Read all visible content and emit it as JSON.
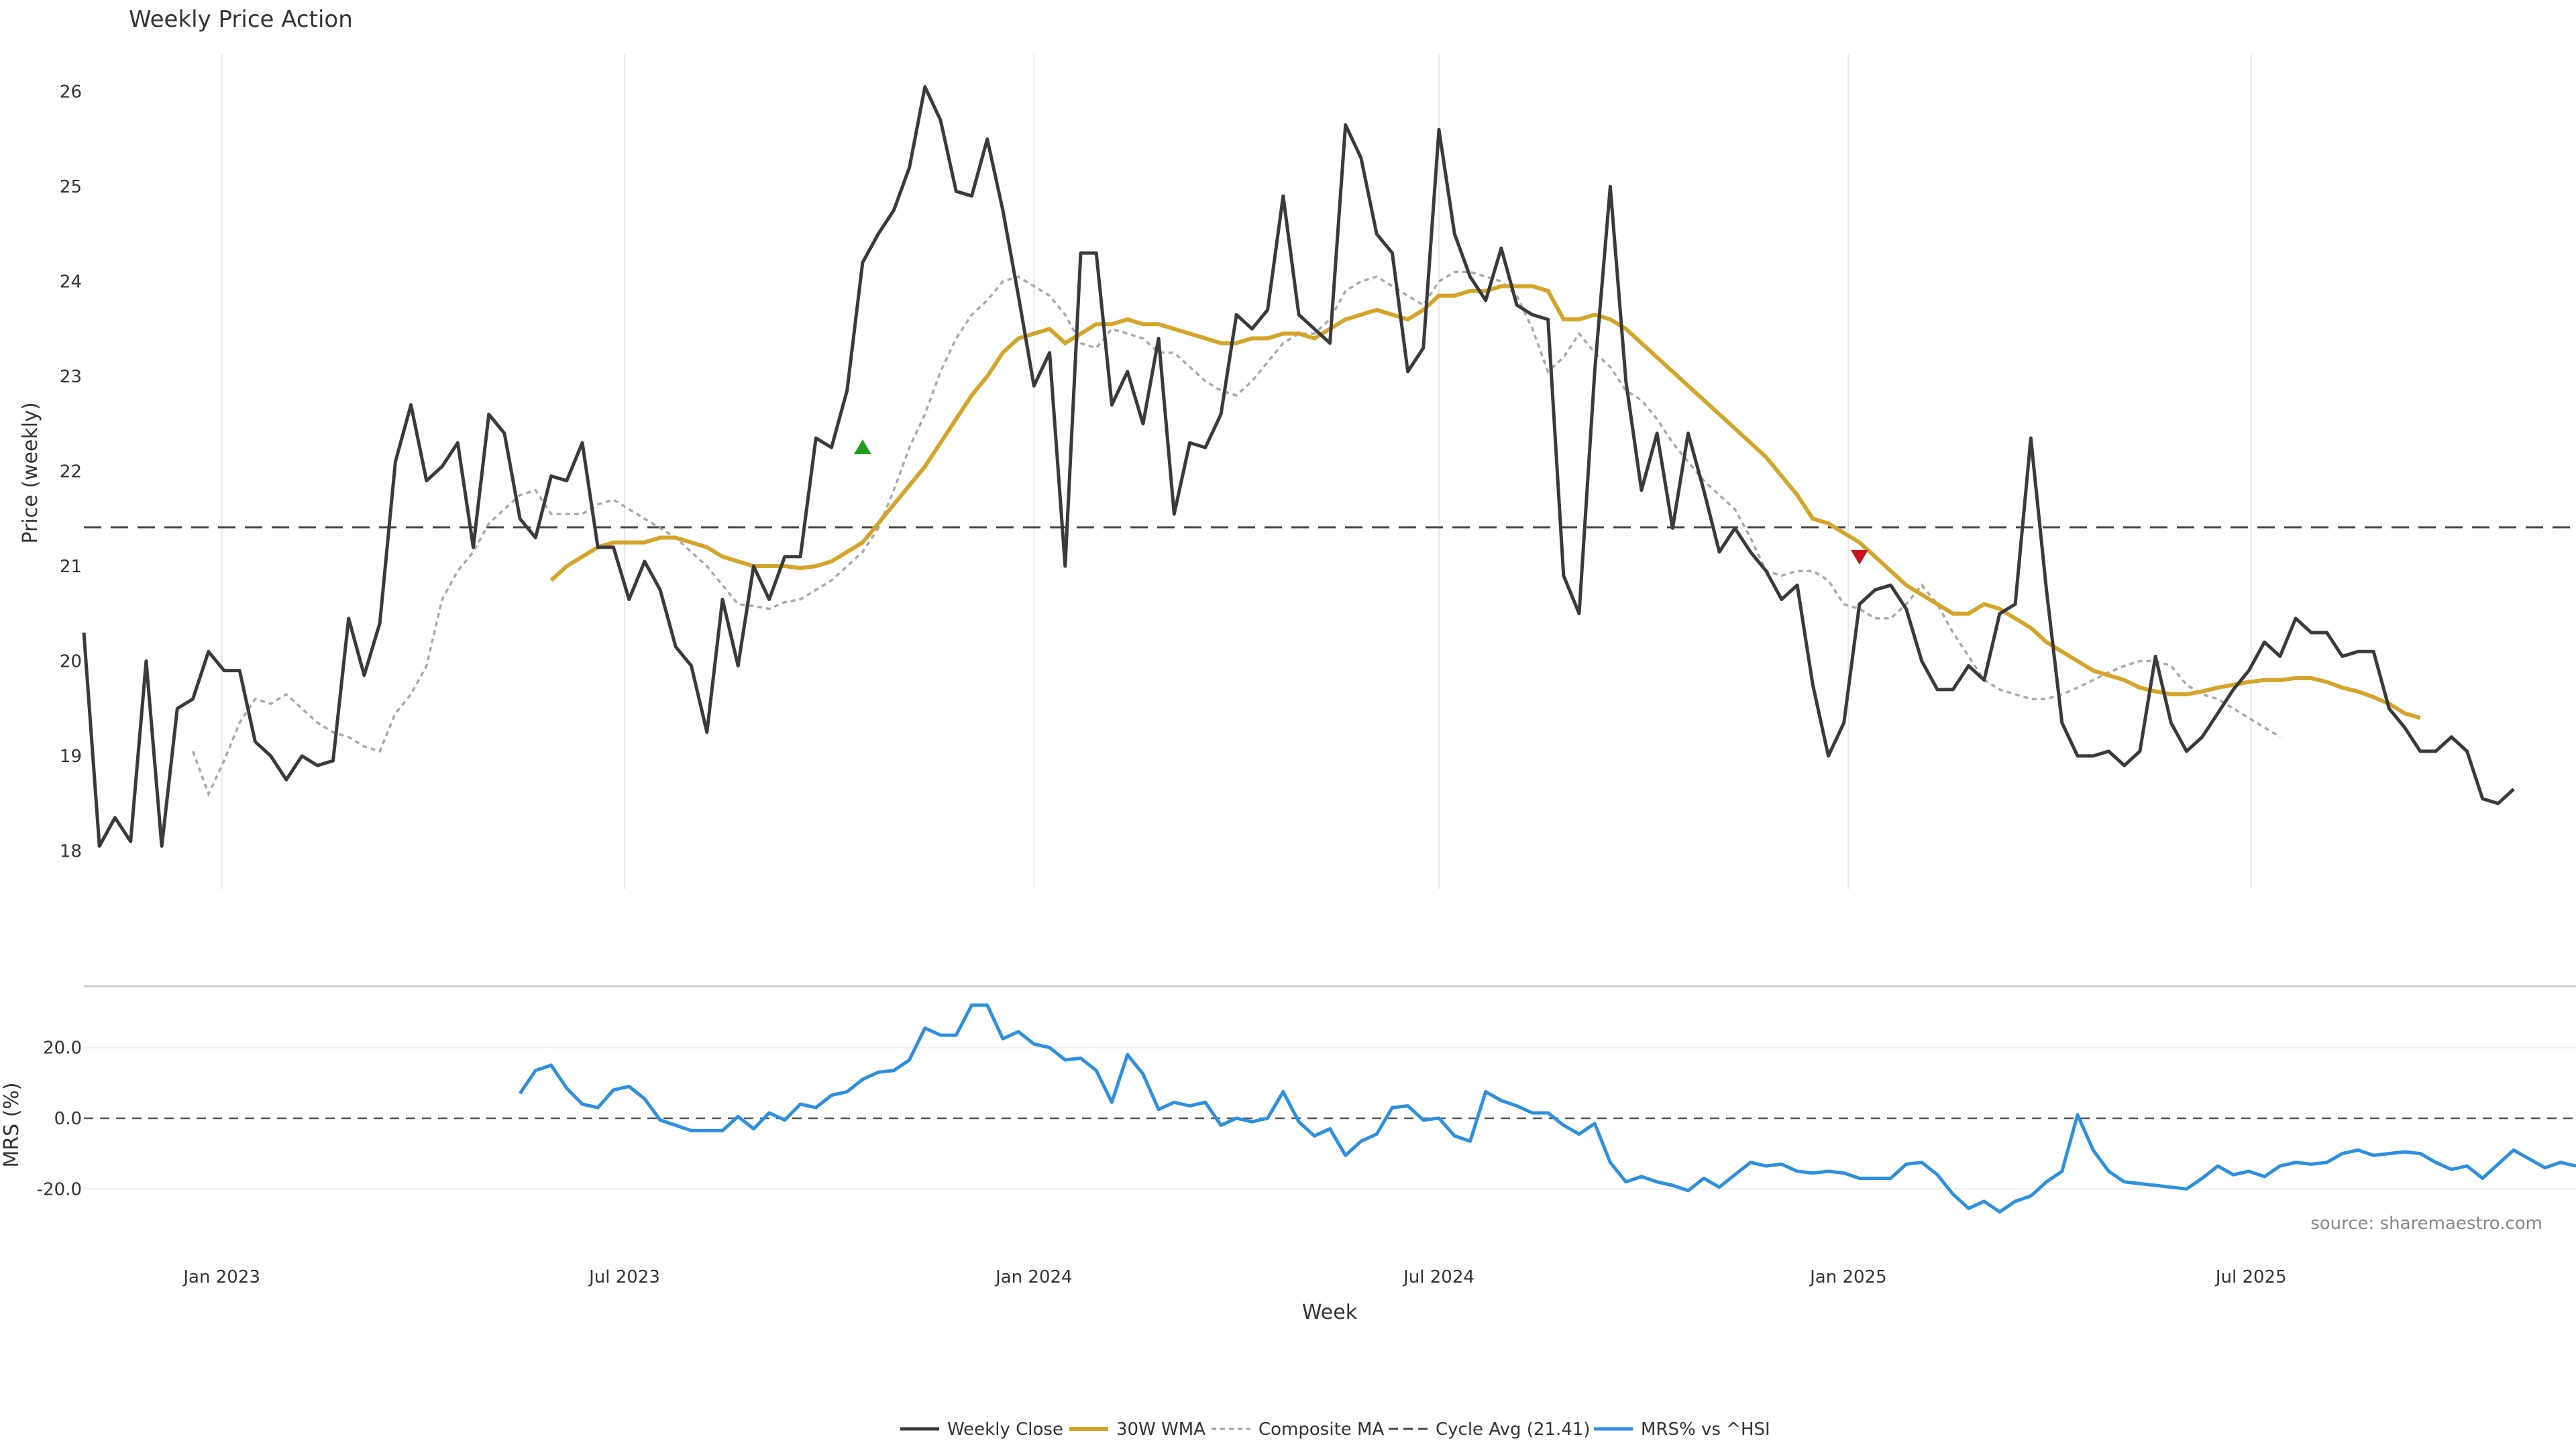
{
  "colors": {
    "close": "#3a3a3a",
    "wma": "#d4a52a",
    "composite": "#a9a9a9",
    "cycle": "#444444",
    "mrs": "#2d8fe0",
    "grid": "#e8e8e8",
    "buy": "#1f9e1f",
    "sell": "#c8141e"
  },
  "chart_data": {
    "type": "line",
    "title": "Weekly Price Action",
    "source": "source: sharemaestro.com",
    "xlabel": "Week",
    "x_ticks": [
      "Jan 2023",
      "Jul 2023",
      "Jan 2024",
      "Jul 2024",
      "Jan 2025",
      "Jul 2025"
    ],
    "x_range": [
      "2022-10-31",
      "2025-11-24"
    ],
    "price_panel": {
      "ylabel": "Price (weekly)",
      "ylim": [
        17.6,
        26.4
      ],
      "y_ticks": [
        "18",
        "19",
        "20",
        "21",
        "22",
        "23",
        "24",
        "25",
        "26"
      ],
      "cycle_avg": 21.41,
      "buy_signal": {
        "x": "2023-10-16",
        "y": 22.25
      },
      "sell_signal": {
        "x": "2025-01-06",
        "y": 21.1
      }
    },
    "mrs_panel": {
      "ylabel": "MRS (%)",
      "ylim": [
        -30,
        37
      ],
      "y_ticks": [
        "20.0",
        "0.0",
        "-20.0"
      ],
      "zero_line": 0
    },
    "legend": [
      "Weekly Close",
      "30W WMA",
      "Composite MA",
      "Cycle Avg (21.41)",
      "MRS% vs ^HSI"
    ],
    "legend_position": "bottom-center",
    "series": [
      {
        "name": "Weekly Close",
        "start": "2022-10-31",
        "step_weeks": 1,
        "values": [
          20.3,
          18.05,
          18.35,
          18.1,
          20.0,
          18.05,
          19.5,
          19.6,
          20.1,
          19.9,
          19.9,
          19.15,
          19.0,
          18.75,
          19.0,
          18.9,
          18.95,
          20.45,
          19.85,
          20.4,
          22.1,
          22.7,
          21.9,
          22.05,
          22.3,
          21.2,
          22.6,
          22.4,
          21.5,
          21.3,
          21.95,
          21.9,
          22.3,
          21.2,
          21.2,
          20.65,
          21.05,
          20.75,
          20.15,
          19.95,
          19.25,
          20.65,
          19.95,
          21.0,
          20.65,
          21.1,
          21.1,
          22.35,
          22.25,
          22.85,
          24.2,
          24.5,
          24.75,
          25.2,
          26.05,
          25.7,
          24.95,
          24.9,
          25.5,
          24.75,
          23.85,
          22.9,
          23.25,
          21.0,
          24.3,
          24.3,
          22.7,
          23.05,
          22.5,
          23.4,
          21.55,
          22.3,
          22.25,
          22.6,
          23.65,
          23.5,
          23.7,
          24.9,
          23.65,
          23.5,
          23.35,
          25.65,
          25.3,
          24.5,
          24.3,
          23.05,
          23.3,
          25.6,
          24.5,
          24.05,
          23.8,
          24.35,
          23.75,
          23.65,
          23.6,
          20.9,
          20.5,
          23.05,
          25.0,
          22.95,
          21.8,
          22.4,
          21.4,
          22.4,
          21.8,
          21.15,
          21.4,
          21.15,
          20.95,
          20.65,
          20.8,
          19.75,
          19.0,
          19.35,
          20.6,
          20.75,
          20.8,
          20.55,
          20.0,
          19.7,
          19.7,
          19.95,
          19.8,
          20.5,
          20.6,
          22.35,
          20.75,
          19.35,
          19.0,
          19.0,
          19.05,
          18.9,
          19.05,
          20.05,
          19.35,
          19.05,
          19.2,
          19.45,
          19.7,
          19.9,
          20.2,
          20.05,
          20.45,
          20.3,
          20.3,
          20.05,
          20.1,
          20.1,
          19.5,
          19.3,
          19.05,
          19.05,
          19.2,
          19.05,
          18.55,
          18.5,
          18.65
        ]
      },
      {
        "name": "30W WMA",
        "start": "2023-05-29",
        "step_weeks": 1,
        "values": [
          20.85,
          21.0,
          21.1,
          21.2,
          21.25,
          21.25,
          21.25,
          21.3,
          21.3,
          21.25,
          21.2,
          21.1,
          21.05,
          21.0,
          21.0,
          21.0,
          20.98,
          21.0,
          21.05,
          21.15,
          21.25,
          21.45,
          21.65,
          21.85,
          22.05,
          22.3,
          22.55,
          22.8,
          23.0,
          23.25,
          23.4,
          23.45,
          23.5,
          23.35,
          23.45,
          23.55,
          23.55,
          23.6,
          23.55,
          23.55,
          23.5,
          23.45,
          23.4,
          23.35,
          23.35,
          23.4,
          23.4,
          23.45,
          23.45,
          23.4,
          23.5,
          23.6,
          23.65,
          23.7,
          23.65,
          23.6,
          23.7,
          23.85,
          23.85,
          23.9,
          23.9,
          23.95,
          23.95,
          23.95,
          23.9,
          23.6,
          23.6,
          23.65,
          23.6,
          23.5,
          23.35,
          23.2,
          23.05,
          22.9,
          22.75,
          22.6,
          22.45,
          22.3,
          22.15,
          21.95,
          21.75,
          21.5,
          21.45,
          21.35,
          21.25,
          21.1,
          20.95,
          20.8,
          20.7,
          20.6,
          20.5,
          20.5,
          20.6,
          20.55,
          20.45,
          20.35,
          20.2,
          20.1,
          20.0,
          19.9,
          19.85,
          19.8,
          19.72,
          19.68,
          19.65,
          19.65,
          19.68,
          19.72,
          19.75,
          19.78,
          19.8,
          19.8,
          19.82,
          19.82,
          19.78,
          19.72,
          19.68,
          19.62,
          19.55,
          19.45,
          19.4
        ]
      },
      {
        "name": "Composite MA",
        "start": "2022-12-19",
        "step_weeks": 1,
        "values": [
          19.05,
          18.6,
          18.95,
          19.35,
          19.6,
          19.55,
          19.65,
          19.5,
          19.35,
          19.25,
          19.2,
          19.1,
          19.05,
          19.45,
          19.65,
          19.95,
          20.65,
          20.95,
          21.15,
          21.45,
          21.6,
          21.75,
          21.8,
          21.55,
          21.55,
          21.55,
          21.65,
          21.7,
          21.6,
          21.5,
          21.4,
          21.3,
          21.15,
          21.0,
          20.8,
          20.6,
          20.58,
          20.55,
          20.62,
          20.65,
          20.75,
          20.85,
          21.0,
          21.15,
          21.4,
          21.8,
          22.25,
          22.6,
          23.05,
          23.4,
          23.65,
          23.8,
          24.0,
          24.05,
          23.95,
          23.85,
          23.65,
          23.35,
          23.3,
          23.5,
          23.45,
          23.4,
          23.25,
          23.25,
          23.1,
          22.95,
          22.85,
          22.8,
          22.95,
          23.15,
          23.35,
          23.45,
          23.45,
          23.6,
          23.9,
          24.0,
          24.05,
          23.95,
          23.85,
          23.75,
          24.0,
          24.1,
          24.1,
          24.05,
          24.0,
          23.85,
          23.5,
          23.05,
          23.2,
          23.45,
          23.25,
          23.1,
          22.85,
          22.75,
          22.55,
          22.3,
          22.1,
          21.9,
          21.75,
          21.6,
          21.3,
          20.95,
          20.9,
          20.95,
          20.95,
          20.85,
          20.6,
          20.55,
          20.45,
          20.45,
          20.6,
          20.8,
          20.6,
          20.3,
          20.05,
          19.8,
          19.7,
          19.65,
          19.6,
          19.6,
          19.65,
          19.72,
          19.8,
          19.88,
          19.95,
          20.0,
          20.0,
          19.95,
          19.75,
          19.65,
          19.6,
          19.5,
          19.4,
          19.3,
          19.2
        ]
      },
      {
        "name": "MRS% vs ^HSI",
        "start": "2023-05-15",
        "step_weeks": 1,
        "values": [
          7.0,
          13.5,
          15.0,
          8.5,
          4.0,
          3.0,
          8.0,
          9.0,
          5.5,
          -0.5,
          -2.0,
          -3.5,
          -3.5,
          -3.5,
          0.5,
          -3.0,
          1.5,
          -0.5,
          4.0,
          3.0,
          6.5,
          7.5,
          11.0,
          13.0,
          13.5,
          16.5,
          25.5,
          23.5,
          23.5,
          32.0,
          32.0,
          22.5,
          24.5,
          21.0,
          20.0,
          16.5,
          17.0,
          13.5,
          4.5,
          18.0,
          12.5,
          2.5,
          4.5,
          3.5,
          4.5,
          -2.0,
          0.0,
          -1.0,
          0.0,
          7.5,
          -1.0,
          -5.0,
          -3.0,
          -10.5,
          -6.5,
          -4.5,
          3.0,
          3.5,
          -0.5,
          0.0,
          -5.0,
          -6.5,
          7.5,
          5.0,
          3.5,
          1.5,
          1.5,
          -2.0,
          -4.5,
          -1.5,
          -12.5,
          -18.0,
          -16.5,
          -18.0,
          -19.0,
          -20.5,
          -17.0,
          -19.5,
          -16.0,
          -12.5,
          -13.5,
          -13.0,
          -15.0,
          -15.5,
          -15.0,
          -15.5,
          -17.0,
          -17.0,
          -17.0,
          -13.0,
          -12.5,
          -16.0,
          -21.5,
          -25.5,
          -23.5,
          -26.5,
          -23.5,
          -22.0,
          -18.0,
          -15.0,
          1.0,
          -9.0,
          -15.0,
          -18.0,
          -18.5,
          -19.0,
          -19.5,
          -20.0,
          -17.0,
          -13.5,
          -16.0,
          -15.0,
          -16.5,
          -13.5,
          -12.5,
          -13.0,
          -12.5,
          -10.0,
          -9.0,
          -10.5,
          -10.0,
          -9.5,
          -10.0,
          -12.5,
          -14.5,
          -13.5,
          -17.0,
          -13.0,
          -9.0,
          -11.5,
          -14.0,
          -12.5,
          -13.5
        ]
      }
    ]
  }
}
